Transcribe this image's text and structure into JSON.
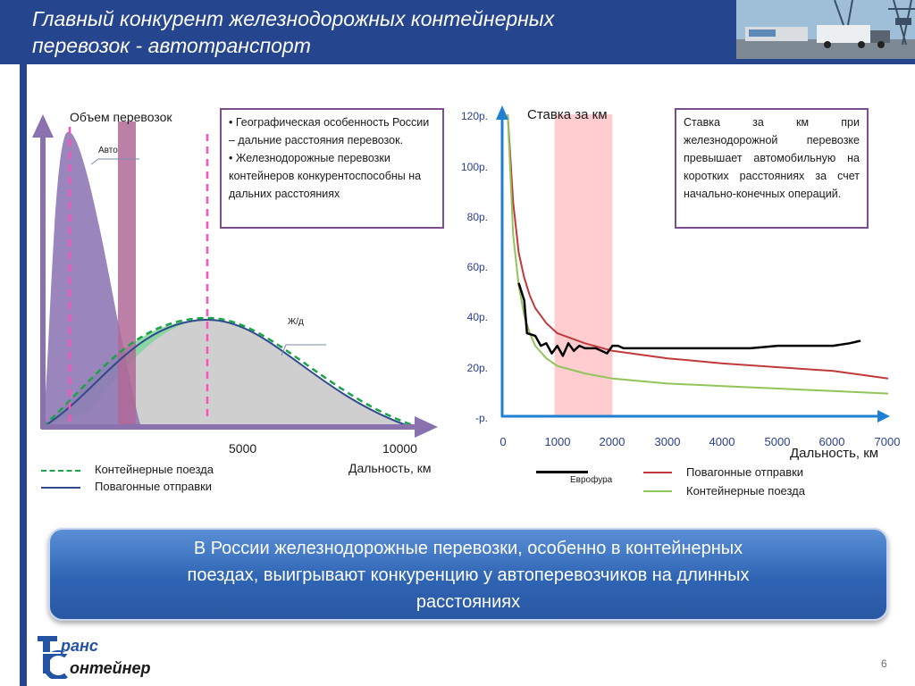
{
  "header": {
    "title_line1": "Главный конкурент железнодорожных контейнерных",
    "title_line2": "перевозок - автотранспорт"
  },
  "left_chart": {
    "y_label": "Объем перевозок",
    "curve_auto": "Авто",
    "curve_rail": "Ж/д",
    "x_ticks": [
      "5000",
      "10000"
    ],
    "x_label": "Дальность, км",
    "legend": [
      {
        "name": "Контейнерные поезда",
        "color": "#1aa34a"
      },
      {
        "name": "Повагонные отправки",
        "color": "#2e4a8c"
      }
    ]
  },
  "note_left": {
    "bullet1": "• Географическая особенность России – дальние расстояния перевозок.",
    "bullet2": "• Железнодорожные перевозки контейнеров конкурентоспособны на дальних расстояниях"
  },
  "note_right": {
    "text": "Ставка за км при железнодорожной перевозке превышает автомобильную на коротких расстояниях за счет начально-конечных операций."
  },
  "right_chart": {
    "title": "Ставка за км",
    "x_label": "Дальность, км",
    "legend": [
      {
        "name": "Еврофура",
        "color": "#000000"
      },
      {
        "name": "Повагонные отправки",
        "color": "#c0393b"
      },
      {
        "name": "Контейнерные поезда",
        "color": "#92c45a"
      }
    ]
  },
  "chart_data": {
    "type": "line",
    "title": "Ставка за км",
    "xlabel": "Дальность, км",
    "ylabel": "",
    "x_ticks": [
      "0",
      "1000",
      "2000",
      "3000",
      "4000",
      "5000",
      "6000",
      "7000"
    ],
    "y_ticks": [
      "-р.",
      "20р.",
      "40р.",
      "60р.",
      "80р.",
      "100р.",
      "120р."
    ],
    "xlim": [
      0,
      7000
    ],
    "ylim": [
      0,
      120
    ],
    "highlight_range": [
      950,
      2000
    ],
    "series": [
      {
        "name": "Еврофура",
        "color": "#000000",
        "x": [
          300,
          400,
          450,
          600,
          700,
          800,
          900,
          1000,
          1100,
          1200,
          1300,
          1400,
          1500,
          1600,
          1700,
          1800,
          1900,
          2000,
          2100,
          2200,
          2500,
          3000,
          3500,
          4000,
          4500,
          5000,
          5500,
          6000,
          6300,
          6500
        ],
        "y": [
          53,
          46,
          33,
          32,
          28,
          29,
          25,
          28,
          24,
          29,
          26,
          28,
          27,
          27,
          27,
          26,
          25,
          28,
          28,
          27,
          27,
          27,
          27,
          27,
          27,
          28,
          28,
          28,
          29,
          30
        ]
      },
      {
        "name": "Повагонные отправки",
        "color": "#c0393b",
        "x": [
          100,
          200,
          300,
          400,
          500,
          600,
          800,
          1000,
          1250,
          1500,
          2000,
          2500,
          3000,
          3500,
          4000,
          5000,
          6000,
          7000
        ],
        "y": [
          120,
          85,
          65,
          55,
          48,
          43,
          37,
          33,
          31,
          29,
          26,
          24.5,
          23,
          22,
          21,
          19.5,
          18,
          15
        ]
      },
      {
        "name": "Контейнерные поезда",
        "color": "#92c45a",
        "x": [
          100,
          200,
          300,
          400,
          500,
          600,
          800,
          1000,
          1250,
          1500,
          2000,
          2500,
          3000,
          3500,
          4000,
          5000,
          6000,
          7000
        ],
        "y": [
          120,
          72,
          52,
          40,
          33,
          28,
          23,
          20,
          18.5,
          17,
          15,
          14,
          13,
          12.5,
          12,
          11,
          10,
          9
        ]
      }
    ]
  },
  "banner": {
    "line1": "В России железнодорожные перевозки, особенно в контейнерных",
    "line2": "поездах, выигрывают конкуренцию у автоперевозчиков на длинных",
    "line3": "расстояниях"
  },
  "footer": {
    "logo_line1": "ранс",
    "logo_line2": "онтейнер",
    "page_number": "6"
  }
}
